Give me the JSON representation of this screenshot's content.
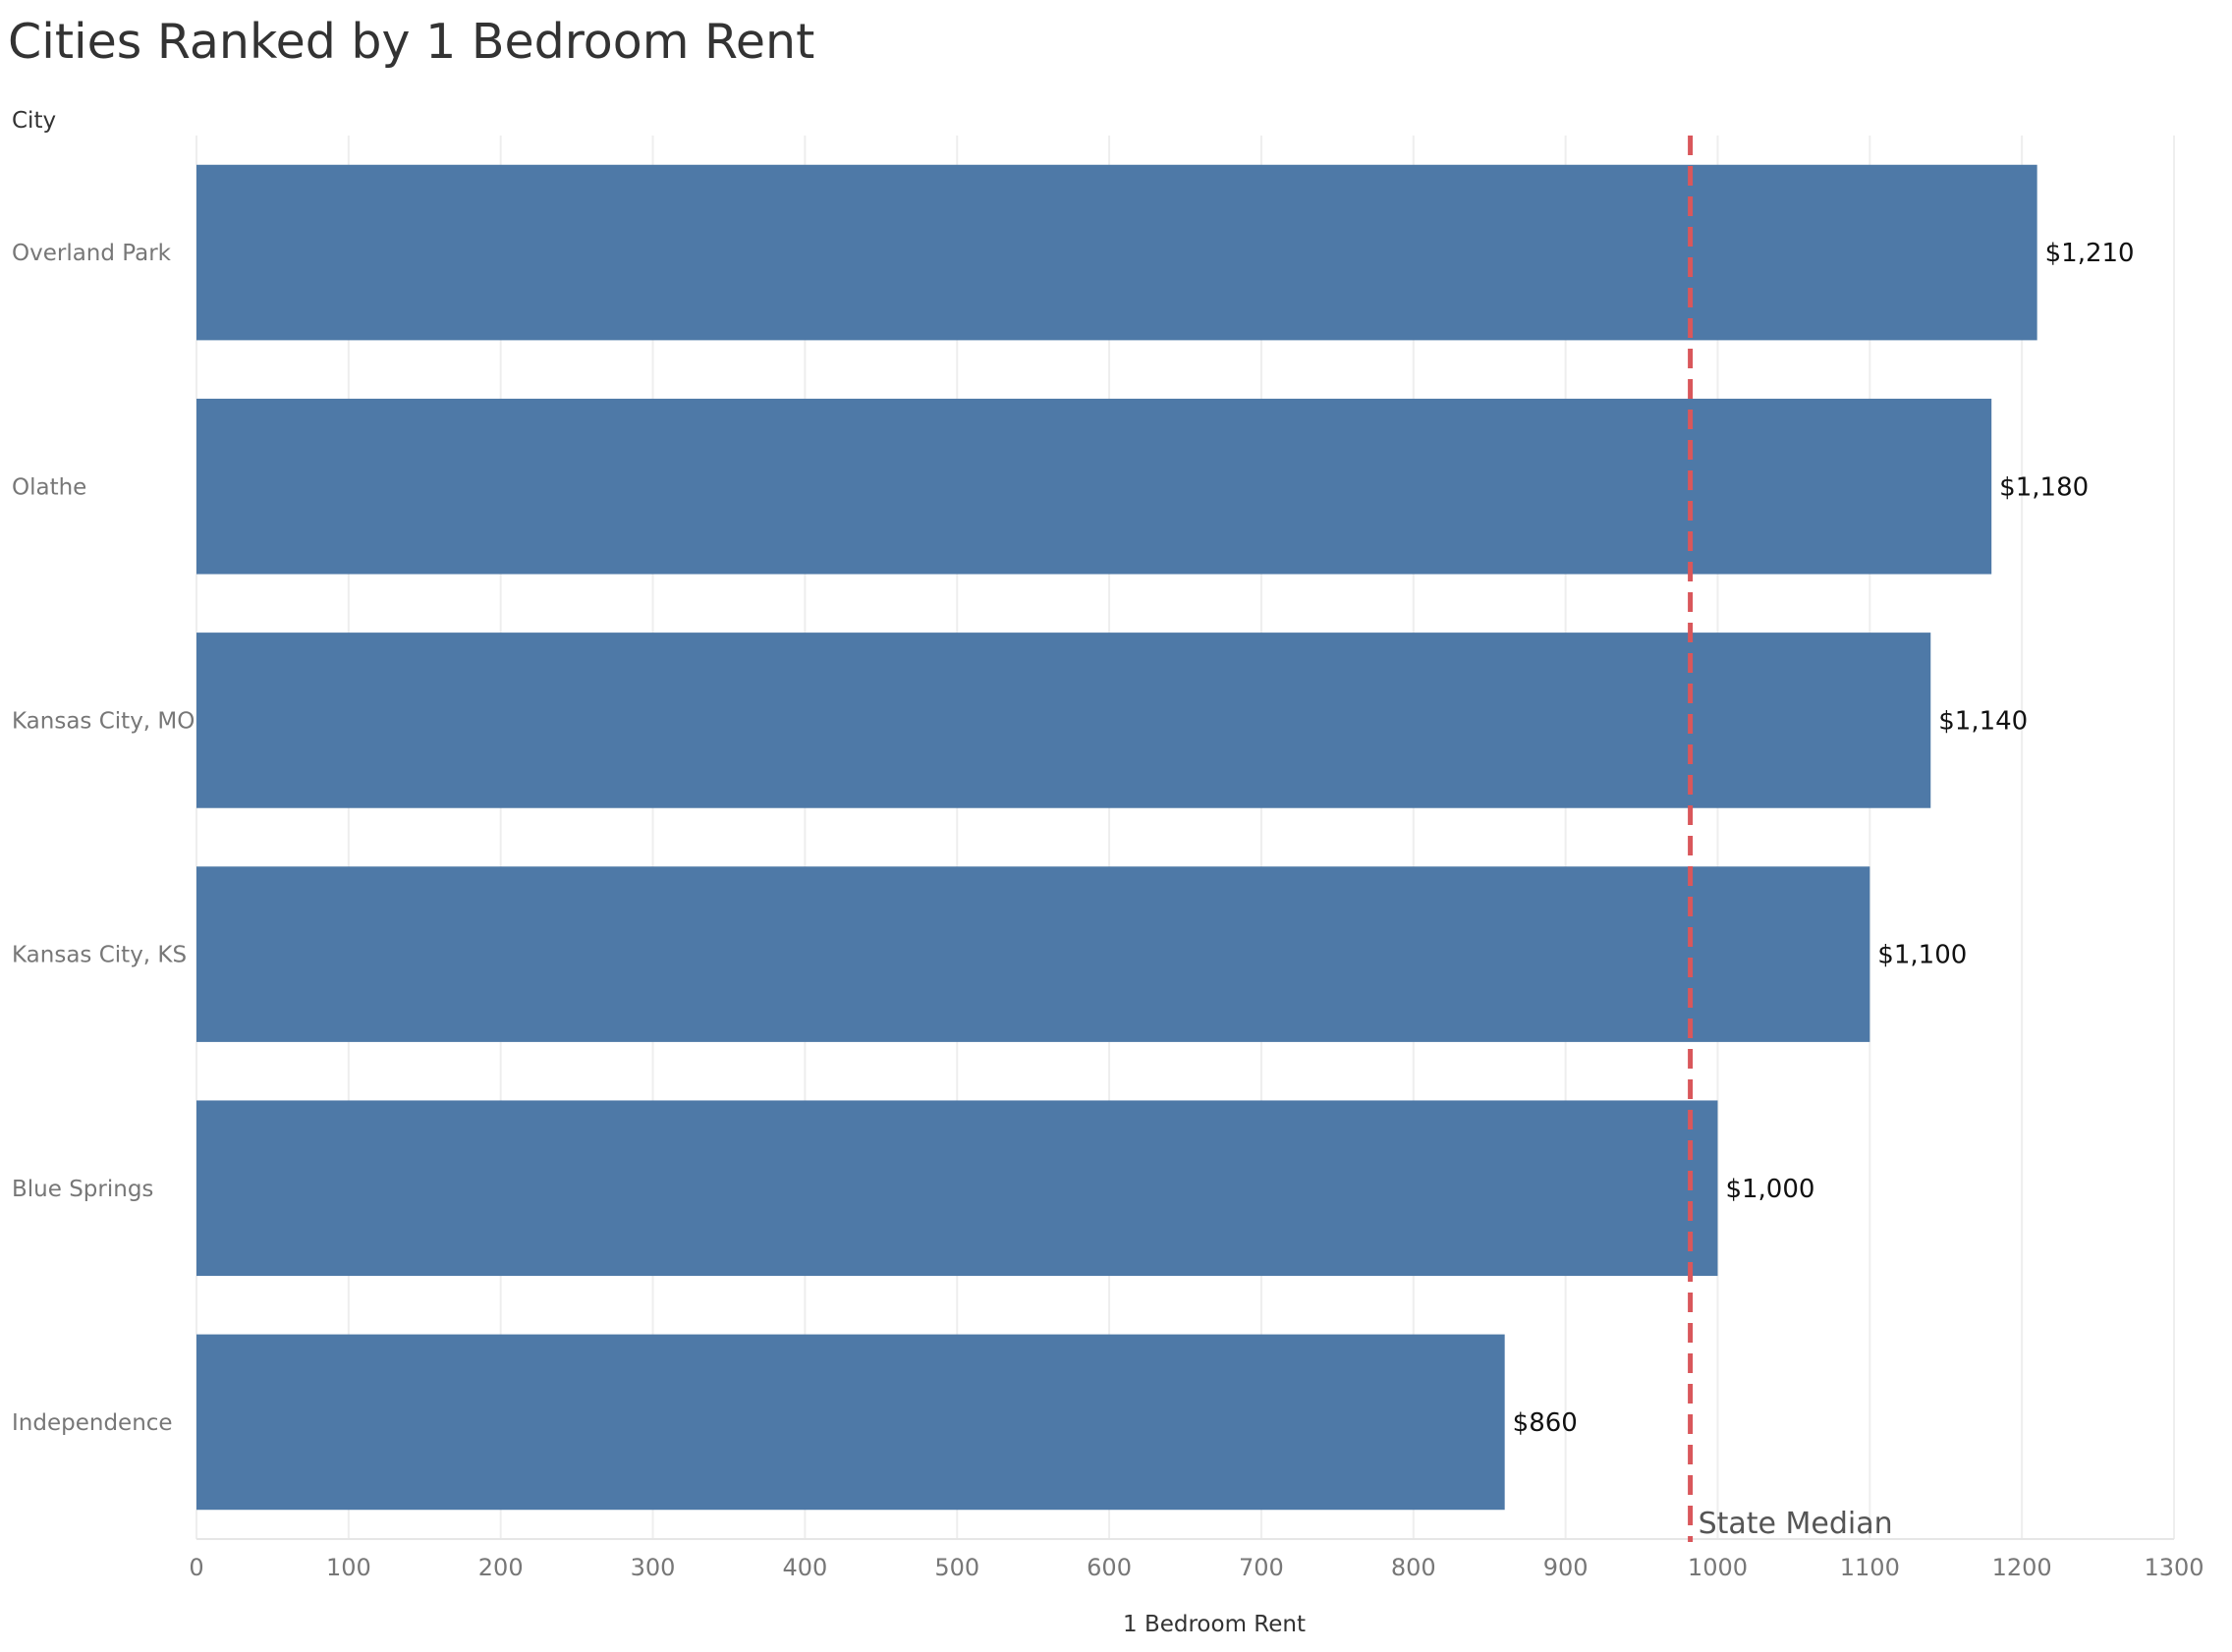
{
  "title": "Cities Ranked by 1 Bedroom Rent",
  "chart_data": {
    "type": "bar",
    "orientation": "horizontal",
    "title": "Cities Ranked by 1 Bedroom Rent",
    "ylabel": "City",
    "xlabel": "1 Bedroom Rent",
    "categories": [
      "Overland Park",
      "Olathe",
      "Kansas City, MO",
      "Kansas City, KS",
      "Blue Springs",
      "Independence"
    ],
    "values": [
      1210,
      1180,
      1140,
      1100,
      1000,
      860
    ],
    "value_labels": [
      "$1,210",
      "$1,180",
      "$1,140",
      "$1,100",
      "$1,000",
      "$860"
    ],
    "xlim": [
      0,
      1300
    ],
    "xticks": [
      0,
      100,
      200,
      300,
      400,
      500,
      600,
      700,
      800,
      900,
      1000,
      1100,
      1200,
      1300
    ],
    "grid": true,
    "reference_line": {
      "label": "State Median",
      "value": 982,
      "style": "dashed"
    },
    "colors": {
      "bar": "#4e79a7",
      "reference_line": "#d9575b",
      "grid": "#eeeeee"
    }
  }
}
